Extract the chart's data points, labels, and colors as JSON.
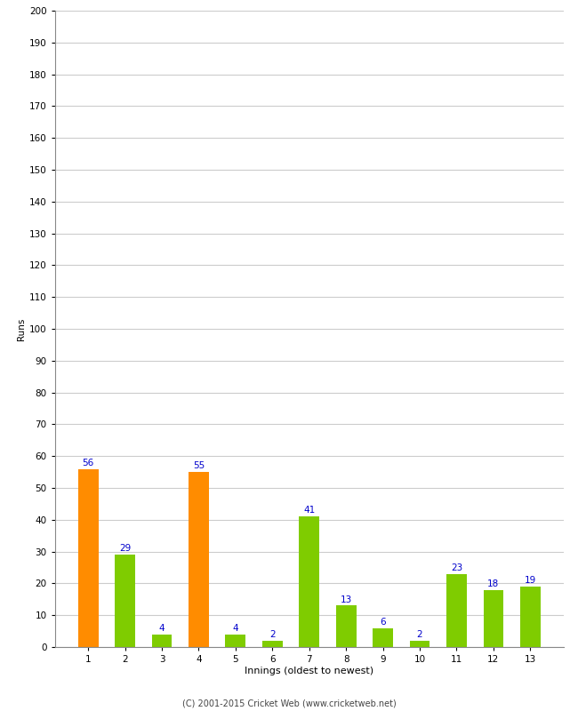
{
  "categories": [
    "1",
    "2",
    "3",
    "4",
    "5",
    "6",
    "7",
    "8",
    "9",
    "10",
    "11",
    "12",
    "13"
  ],
  "values": [
    56,
    29,
    4,
    55,
    4,
    2,
    41,
    13,
    6,
    2,
    23,
    18,
    19
  ],
  "bar_colors": [
    "#FF8C00",
    "#7FCC00",
    "#7FCC00",
    "#FF8C00",
    "#7FCC00",
    "#7FCC00",
    "#7FCC00",
    "#7FCC00",
    "#7FCC00",
    "#7FCC00",
    "#7FCC00",
    "#7FCC00",
    "#7FCC00"
  ],
  "xlabel": "Innings (oldest to newest)",
  "ylabel": "Runs",
  "ylim": [
    0,
    200
  ],
  "yticks": [
    0,
    10,
    20,
    30,
    40,
    50,
    60,
    70,
    80,
    90,
    100,
    110,
    120,
    130,
    140,
    150,
    160,
    170,
    180,
    190,
    200
  ],
  "label_color": "#0000CC",
  "label_fontsize": 7.5,
  "ylabel_fontsize": 7.5,
  "xlabel_fontsize": 8,
  "tick_fontsize": 7.5,
  "background_color": "#FFFFFF",
  "grid_color": "#CCCCCC",
  "footer_text": "(C) 2001-2015 Cricket Web (www.cricketweb.net)",
  "footer_fontsize": 7
}
